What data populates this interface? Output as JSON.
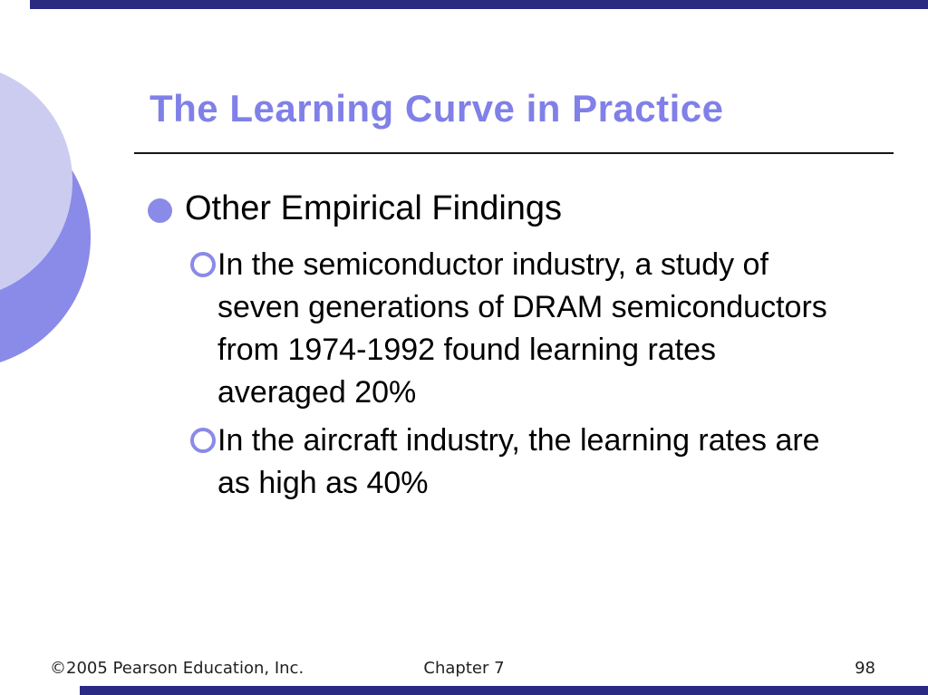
{
  "slide": {
    "title": "The Learning Curve in Practice",
    "bullets": [
      {
        "label": "Other Empirical Findings",
        "sub": [
          {
            "lines": [
              "In the semiconductor industry, a study of",
              "seven generations of DRAM semiconductors",
              "from 1974-1992 found learning rates",
              "averaged 20%"
            ]
          },
          {
            "lines": [
              "In the aircraft industry, the learning rates are",
              "as high as 40%"
            ]
          }
        ]
      }
    ],
    "footer": {
      "copyright": "©2005 Pearson Education, Inc.",
      "chapter": "Chapter 7",
      "page_number": "98"
    },
    "colors": {
      "accent_title": "#8080e8",
      "bullet_fill": "#8a8ae8",
      "circle_light": "#ccccf1",
      "circle_medium": "#8a8ae8",
      "edge_bar_navy": "#2a2a82",
      "body_text": "#000000",
      "footer_text": "#1f1f1f"
    }
  }
}
